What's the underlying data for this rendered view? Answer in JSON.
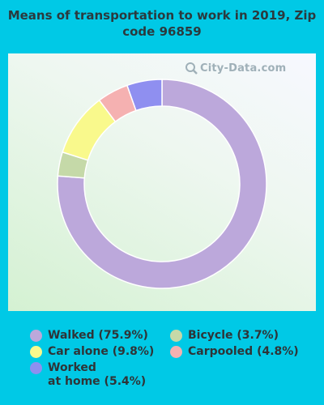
{
  "title": "Means of transportation to work in 2019, Zip code 96859",
  "watermark": "City-Data.com",
  "chart_data": {
    "type": "pie",
    "donut": true,
    "title": "Means of transportation to work in 2019, Zip code 96859",
    "slices": [
      {
        "label": "Walked (75.9%)",
        "value": 75.9,
        "color": "#bca8db"
      },
      {
        "label": "Bicycle (3.7%)",
        "value": 3.7,
        "color": "#c5d9a8"
      },
      {
        "label": "Car alone (9.8%)",
        "value": 9.8,
        "color": "#f9f98c"
      },
      {
        "label": "Carpooled (4.8%)",
        "value": 4.8,
        "color": "#f5b1b1"
      },
      {
        "label": "Worked\nat home (5.4%)",
        "value": 5.4,
        "color": "#8f8ff0"
      }
    ],
    "legend_position": "bottom"
  },
  "legend": [
    {
      "label": "Walked (75.9%)",
      "color": "#bca8db"
    },
    {
      "label": "Car alone (9.8%)",
      "color": "#f9f98c"
    },
    {
      "label": "Worked\nat home (5.4%)",
      "color": "#8f8ff0"
    },
    {
      "label": "Bicycle (3.7%)",
      "color": "#c5d9a8"
    },
    {
      "label": "Carpooled (4.8%)",
      "color": "#f5b1b1"
    }
  ]
}
